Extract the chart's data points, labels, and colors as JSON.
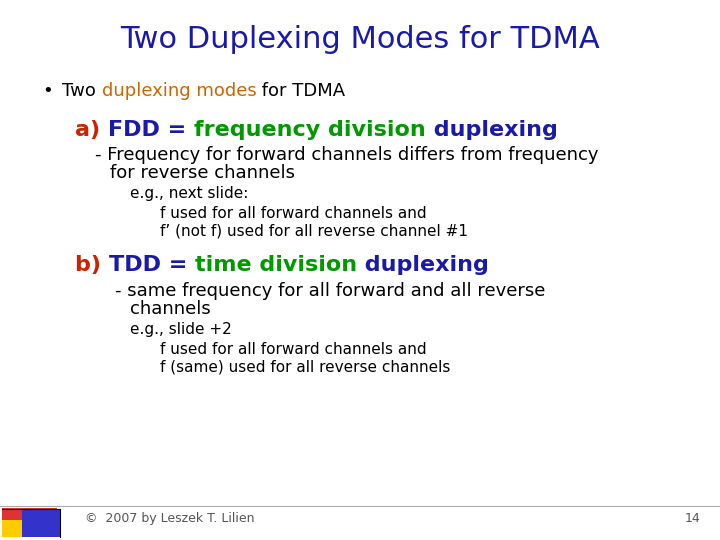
{
  "title": "Two Duplexing Modes for TDMA",
  "title_color": "#1a1aaa",
  "title_fontsize": 22,
  "bg_color": "#ffffff",
  "bullet_color": "#000000",
  "text_color": "#000000",
  "orange_color": "#cc6600",
  "red_color": "#cc2200",
  "green_color": "#009900",
  "navy_color": "#1a1aaa",
  "footer_text": "©  2007 by Leszek T. Lilien",
  "footer_page": "14",
  "footer_color": "#555555"
}
